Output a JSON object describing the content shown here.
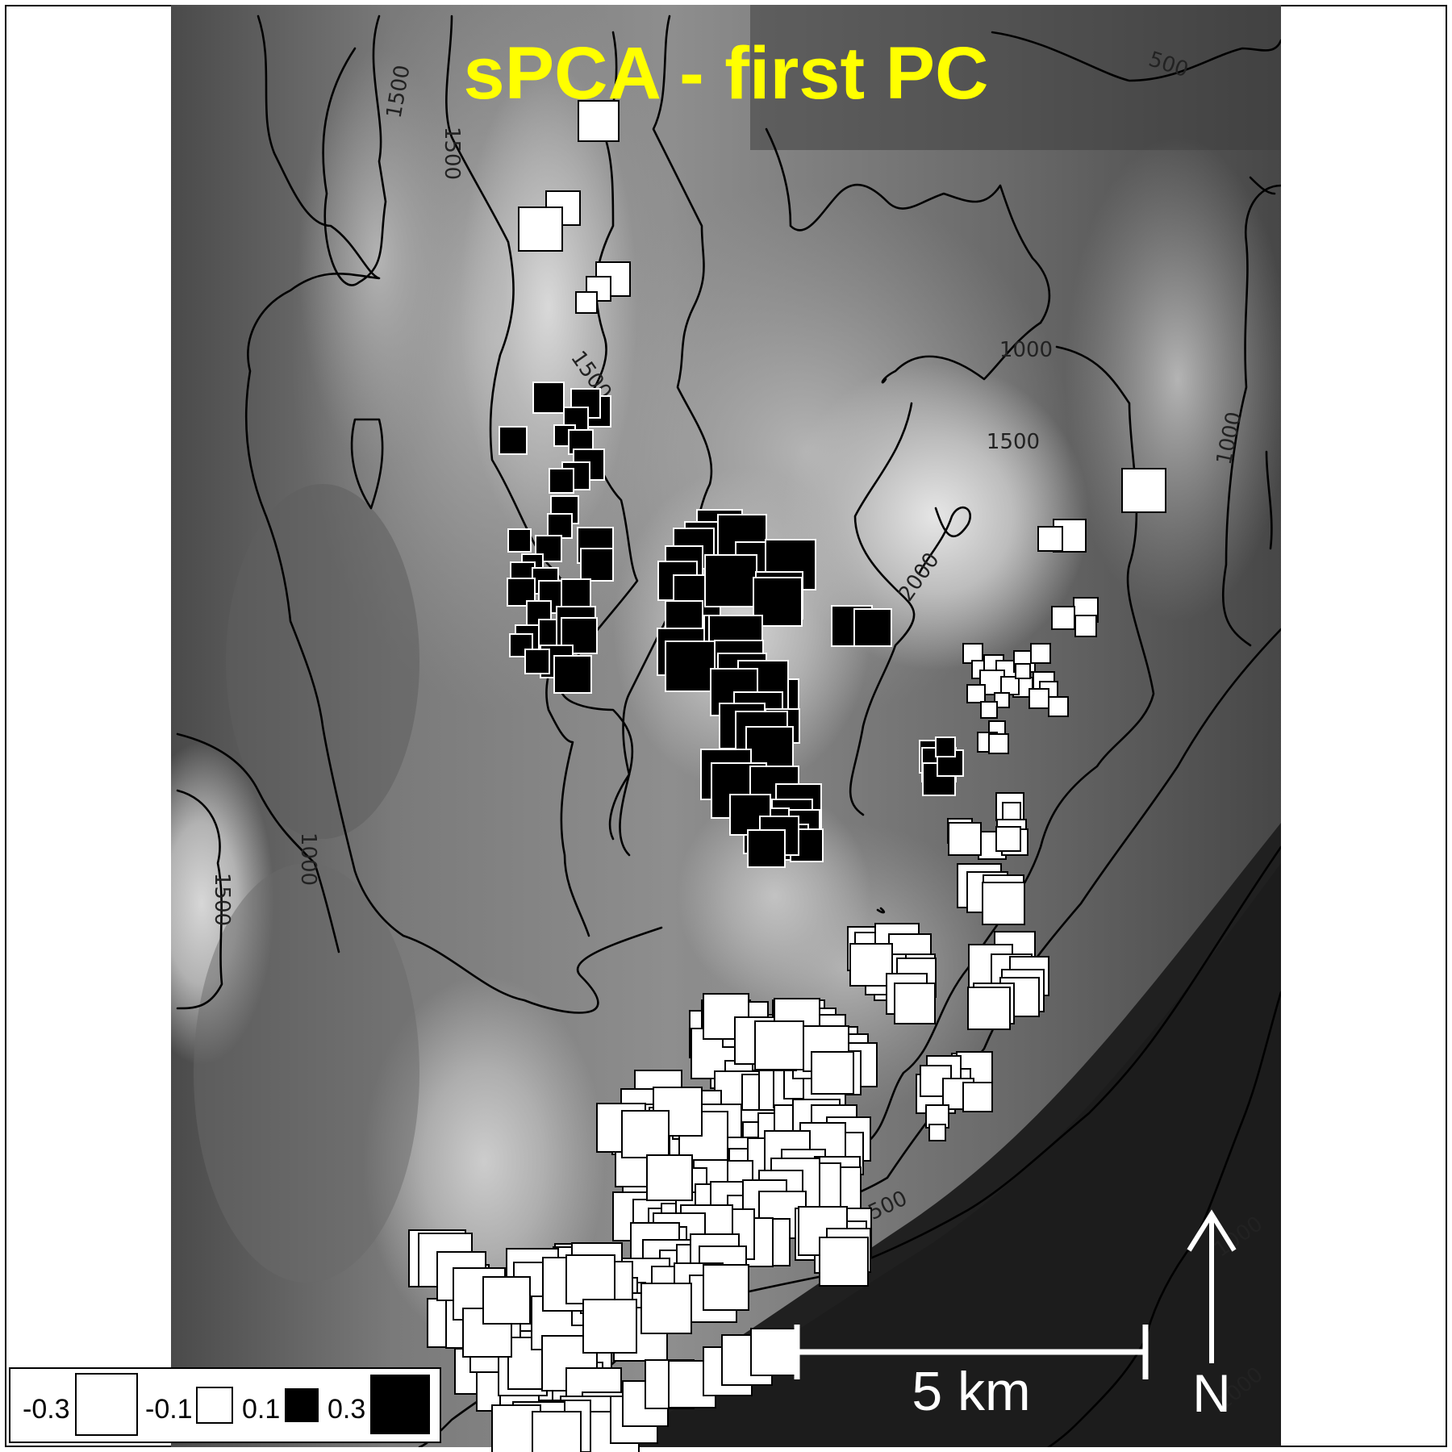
{
  "title": "sPCA - first PC",
  "scalebar": {
    "label": "5 km"
  },
  "north_arrow": {
    "label": "N"
  },
  "contour_labels": [
    "1500",
    "1500",
    "1500",
    "500",
    "1000",
    "1500",
    "2000",
    "1000",
    "1000",
    "1500",
    "500",
    "1000",
    "1000"
  ],
  "legend": {
    "entries": [
      {
        "label": "-0.3",
        "fill": "#ffffff"
      },
      {
        "label": "-0.1",
        "fill": "#ffffff"
      },
      {
        "label": "0.1",
        "fill": "#000000"
      },
      {
        "label": "0.3",
        "fill": "#000000"
      }
    ]
  },
  "colors": {
    "title": "#ffff00",
    "positive_score": "#000000",
    "negative_score": "#ffffff",
    "scalebar": "#ffffff",
    "north_arrow": "#ffffff"
  }
}
